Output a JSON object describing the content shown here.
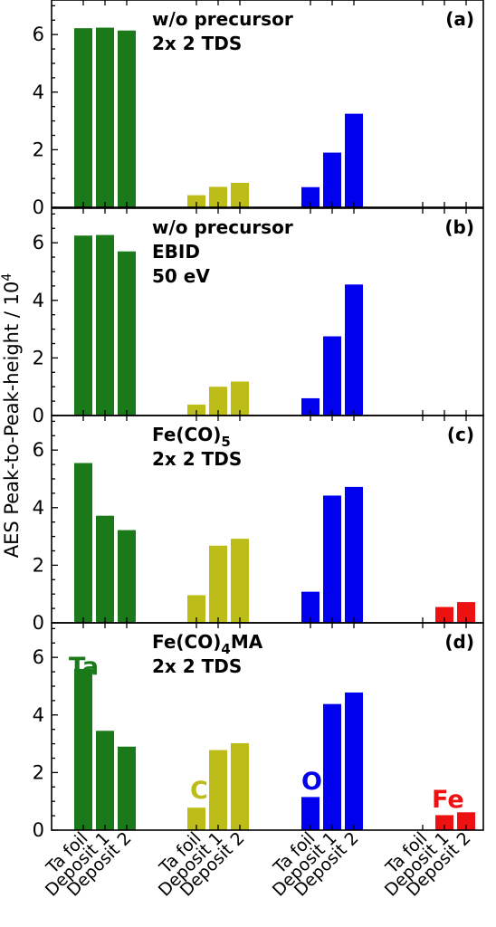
{
  "chart_data": {
    "type": "bar",
    "ylabel": "AES Peak-to-Peak-height / 10",
    "ylabel_exponent": "4",
    "ylim": [
      0,
      7.2
    ],
    "yticks": [
      "0",
      "2",
      "4",
      "6"
    ],
    "groups": [
      "Ta",
      "C",
      "O",
      "Fe"
    ],
    "categories": [
      "Ta foil",
      "Deposit 1",
      "Deposit 2"
    ],
    "colors": {
      "Ta": "#1a7a1a",
      "C": "#bdbd1a",
      "O": "#0000ee",
      "Fe": "#ee1111"
    },
    "panels": [
      {
        "letter": "(a)",
        "annotation": [
          {
            "text": "w/o precursor"
          },
          {
            "text": "2x 2 TDS"
          }
        ],
        "series": [
          {
            "group": "Ta",
            "values": [
              6.22,
              6.24,
              6.14
            ]
          },
          {
            "group": "C",
            "values": [
              0.42,
              0.71,
              0.85
            ]
          },
          {
            "group": "O",
            "values": [
              0.7,
              1.9,
              3.25
            ]
          },
          {
            "group": "Fe",
            "values": [
              0,
              0,
              0
            ]
          }
        ]
      },
      {
        "letter": "(b)",
        "annotation": [
          {
            "text": "w/o precursor"
          },
          {
            "text": "EBID"
          },
          {
            "text": "50 eV"
          }
        ],
        "series": [
          {
            "group": "Ta",
            "values": [
              6.25,
              6.27,
              5.7
            ]
          },
          {
            "group": "C",
            "values": [
              0.38,
              1.0,
              1.18
            ]
          },
          {
            "group": "O",
            "values": [
              0.6,
              2.75,
              4.55
            ]
          },
          {
            "group": "Fe",
            "values": [
              0,
              0,
              0
            ]
          }
        ]
      },
      {
        "letter": "(c)",
        "annotation": [
          {
            "text": "Fe(CO)",
            "sub": "5"
          },
          {
            "text": "2x 2 TDS"
          }
        ],
        "series": [
          {
            "group": "Ta",
            "values": [
              5.55,
              3.72,
              3.22
            ]
          },
          {
            "group": "C",
            "values": [
              0.96,
              2.68,
              2.92
            ]
          },
          {
            "group": "O",
            "values": [
              1.08,
              4.42,
              4.72
            ]
          },
          {
            "group": "Fe",
            "values": [
              0,
              0.55,
              0.72
            ]
          }
        ]
      },
      {
        "letter": "(d)",
        "annotation": [
          {
            "text": "Fe(CO)",
            "sub": "4",
            "after": "MA"
          },
          {
            "text": "2x 2 TDS"
          }
        ],
        "element_labels": [
          "Ta",
          "C",
          "O",
          "Fe"
        ],
        "series": [
          {
            "group": "Ta",
            "values": [
              5.6,
              3.45,
              2.9
            ]
          },
          {
            "group": "C",
            "values": [
              0.78,
              2.78,
              3.02
            ]
          },
          {
            "group": "O",
            "values": [
              1.15,
              4.38,
              4.78
            ]
          },
          {
            "group": "Fe",
            "values": [
              0,
              0.52,
              0.62
            ]
          }
        ]
      }
    ]
  }
}
